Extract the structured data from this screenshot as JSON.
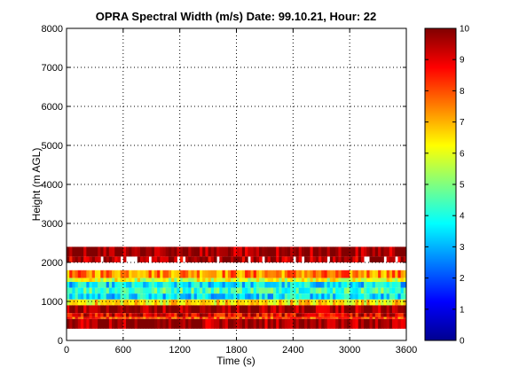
{
  "chart_data": {
    "type": "heatmap",
    "title": "OPRA Spectral Width (m/s)  Date: 99.10.21, Hour: 22",
    "xlabel": "Time (s)",
    "ylabel": "Height (m AGL)",
    "xlim": [
      0,
      3600
    ],
    "ylim": [
      0,
      8000
    ],
    "x_ticks": [
      "0",
      "600",
      "1200",
      "1800",
      "2400",
      "3000",
      "3600"
    ],
    "y_ticks": [
      "0",
      "1000",
      "2000",
      "3000",
      "4000",
      "5000",
      "6000",
      "7000",
      "8000"
    ],
    "grid": true,
    "colormap": "jet",
    "colorbar": {
      "range": [
        0,
        10
      ],
      "ticks": [
        "0",
        "1",
        "2",
        "3",
        "4",
        "5",
        "6",
        "7",
        "8",
        "9",
        "10"
      ],
      "placement": "right"
    },
    "bands": [
      {
        "height_range": [
          2150,
          2400
        ],
        "width": 9.8
      },
      {
        "height_range": [
          2000,
          2150
        ],
        "width": 9.5
      },
      {
        "height_range": [
          1600,
          1800
        ],
        "width": 7.5
      },
      {
        "height_range": [
          1500,
          1600
        ],
        "width": 6.0
      },
      {
        "height_range": [
          1350,
          1500
        ],
        "width": 3.5
      },
      {
        "height_range": [
          1200,
          1350
        ],
        "width": 4.5
      },
      {
        "height_range": [
          1050,
          1200
        ],
        "width": 3.5
      },
      {
        "height_range": [
          900,
          1050
        ],
        "width": 6.5
      },
      {
        "height_range": [
          700,
          900
        ],
        "width": 9.8
      },
      {
        "height_range": [
          600,
          700
        ],
        "width": 9.0
      },
      {
        "height_range": [
          550,
          600
        ],
        "width": 8.0
      },
      {
        "height_range": [
          300,
          550
        ],
        "width": 9.8
      }
    ]
  }
}
